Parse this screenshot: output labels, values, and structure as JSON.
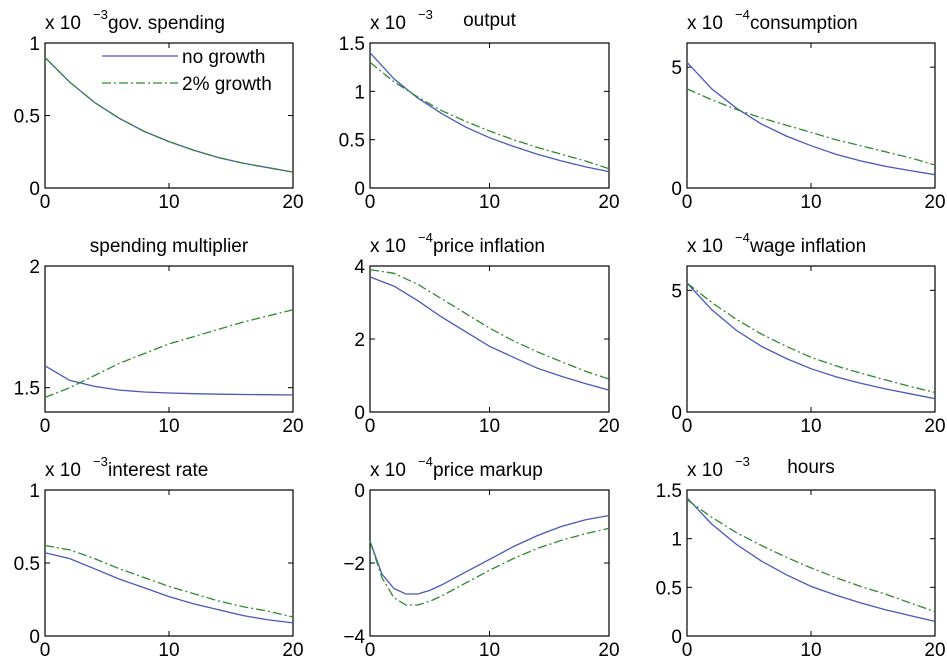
{
  "colors": {
    "no_growth": "#4a58b8",
    "growth_2pct": "#2f8a2f",
    "axis": "#000000"
  },
  "chart_data": [
    {
      "type": "line",
      "title": "gov. spending",
      "multiplier_text": "x 10",
      "exponent": "−3",
      "xlim": [
        0,
        20
      ],
      "ylim": [
        0,
        1
      ],
      "xticks": [
        "0",
        "10",
        "20"
      ],
      "yticks": [
        {
          "v": 0,
          "t": "0"
        },
        {
          "v": 0.5,
          "t": "0.5"
        },
        {
          "v": 1,
          "t": "1"
        }
      ],
      "legend": {
        "placement": "top-right",
        "entries": [
          "no growth",
          "2% growth"
        ]
      },
      "x": [
        0,
        2,
        4,
        6,
        8,
        10,
        12,
        14,
        16,
        18,
        20
      ],
      "series": [
        {
          "name": "no growth",
          "values": [
            0.9,
            0.73,
            0.59,
            0.48,
            0.39,
            0.32,
            0.26,
            0.21,
            0.17,
            0.14,
            0.11
          ]
        },
        {
          "name": "2% growth",
          "values": [
            0.9,
            0.73,
            0.59,
            0.48,
            0.39,
            0.32,
            0.26,
            0.21,
            0.17,
            0.14,
            0.11
          ]
        }
      ]
    },
    {
      "type": "line",
      "title": "output",
      "multiplier_text": "x 10",
      "exponent": "−3",
      "xlim": [
        0,
        20
      ],
      "ylim": [
        0,
        1.5
      ],
      "xticks": [
        "0",
        "10",
        "20"
      ],
      "yticks": [
        {
          "v": 0,
          "t": "0"
        },
        {
          "v": 0.5,
          "t": "0.5"
        },
        {
          "v": 1,
          "t": "1"
        },
        {
          "v": 1.5,
          "t": "1.5"
        }
      ],
      "x": [
        0,
        2,
        4,
        6,
        8,
        10,
        12,
        14,
        16,
        18,
        20
      ],
      "series": [
        {
          "name": "no growth",
          "values": [
            1.4,
            1.13,
            0.93,
            0.77,
            0.63,
            0.52,
            0.43,
            0.35,
            0.28,
            0.22,
            0.17
          ]
        },
        {
          "name": "2% growth",
          "values": [
            1.3,
            1.1,
            0.94,
            0.8,
            0.69,
            0.59,
            0.5,
            0.42,
            0.35,
            0.28,
            0.2
          ]
        }
      ]
    },
    {
      "type": "line",
      "title": "consumption",
      "multiplier_text": "x 10",
      "exponent": "−4",
      "xlim": [
        0,
        20
      ],
      "ylim": [
        0,
        6
      ],
      "xticks": [
        "0",
        "10",
        "20"
      ],
      "yticks": [
        {
          "v": 0,
          "t": "0"
        },
        {
          "v": 5,
          "t": "5"
        }
      ],
      "x": [
        0,
        2,
        4,
        6,
        8,
        10,
        12,
        14,
        16,
        18,
        20
      ],
      "series": [
        {
          "name": "no growth",
          "values": [
            5.2,
            4.1,
            3.3,
            2.65,
            2.15,
            1.75,
            1.4,
            1.12,
            0.9,
            0.72,
            0.55
          ]
        },
        {
          "name": "2% growth",
          "values": [
            4.1,
            3.65,
            3.25,
            2.9,
            2.6,
            2.3,
            2.0,
            1.75,
            1.5,
            1.25,
            0.95
          ]
        }
      ]
    },
    {
      "type": "line",
      "title": "spending multiplier",
      "multiplier_text": "",
      "exponent": "",
      "xlim": [
        0,
        20
      ],
      "ylim": [
        1.4,
        2
      ],
      "xticks": [
        "0",
        "10",
        "20"
      ],
      "yticks": [
        {
          "v": 1.5,
          "t": "1.5"
        },
        {
          "v": 2,
          "t": "2"
        }
      ],
      "x": [
        0,
        2,
        4,
        6,
        8,
        10,
        12,
        14,
        16,
        18,
        20
      ],
      "series": [
        {
          "name": "no growth",
          "values": [
            1.59,
            1.53,
            1.505,
            1.49,
            1.482,
            1.478,
            1.475,
            1.473,
            1.472,
            1.471,
            1.47
          ]
        },
        {
          "name": "2% growth",
          "values": [
            1.46,
            1.5,
            1.55,
            1.6,
            1.64,
            1.68,
            1.71,
            1.74,
            1.77,
            1.795,
            1.82
          ]
        }
      ]
    },
    {
      "type": "line",
      "title": "price inflation",
      "multiplier_text": "x 10",
      "exponent": "−4",
      "xlim": [
        0,
        20
      ],
      "ylim": [
        0,
        4
      ],
      "xticks": [
        "0",
        "10",
        "20"
      ],
      "yticks": [
        {
          "v": 0,
          "t": "0"
        },
        {
          "v": 2,
          "t": "2"
        },
        {
          "v": 4,
          "t": "4"
        }
      ],
      "x": [
        0,
        2,
        4,
        6,
        8,
        10,
        12,
        14,
        16,
        18,
        20
      ],
      "series": [
        {
          "name": "no growth",
          "values": [
            3.7,
            3.45,
            3.05,
            2.6,
            2.2,
            1.8,
            1.5,
            1.2,
            0.98,
            0.78,
            0.6
          ]
        },
        {
          "name": "2% growth",
          "values": [
            3.9,
            3.8,
            3.5,
            3.1,
            2.7,
            2.3,
            1.95,
            1.65,
            1.38,
            1.12,
            0.9
          ]
        }
      ]
    },
    {
      "type": "line",
      "title": "wage inflation",
      "multiplier_text": "x 10",
      "exponent": "−4",
      "xlim": [
        0,
        20
      ],
      "ylim": [
        0,
        6
      ],
      "xticks": [
        "0",
        "10",
        "20"
      ],
      "yticks": [
        {
          "v": 0,
          "t": "0"
        },
        {
          "v": 5,
          "t": "5"
        }
      ],
      "x": [
        0,
        2,
        4,
        6,
        8,
        10,
        12,
        14,
        16,
        18,
        20
      ],
      "series": [
        {
          "name": "no growth",
          "values": [
            5.3,
            4.2,
            3.35,
            2.7,
            2.2,
            1.78,
            1.45,
            1.18,
            0.95,
            0.75,
            0.55
          ]
        },
        {
          "name": "2% growth",
          "values": [
            5.3,
            4.5,
            3.8,
            3.2,
            2.7,
            2.25,
            1.9,
            1.6,
            1.32,
            1.05,
            0.8
          ]
        }
      ]
    },
    {
      "type": "line",
      "title": "interest rate",
      "multiplier_text": "x 10",
      "exponent": "−3",
      "xlim": [
        0,
        20
      ],
      "ylim": [
        0,
        1
      ],
      "xticks": [
        "0",
        "10",
        "20"
      ],
      "yticks": [
        {
          "v": 0,
          "t": "0"
        },
        {
          "v": 0.5,
          "t": "0.5"
        },
        {
          "v": 1,
          "t": "1"
        }
      ],
      "x": [
        0,
        2,
        4,
        6,
        8,
        10,
        12,
        14,
        16,
        18,
        20
      ],
      "series": [
        {
          "name": "no growth",
          "values": [
            0.57,
            0.53,
            0.46,
            0.39,
            0.33,
            0.27,
            0.22,
            0.18,
            0.14,
            0.11,
            0.09
          ]
        },
        {
          "name": "2% growth",
          "values": [
            0.62,
            0.59,
            0.53,
            0.46,
            0.4,
            0.34,
            0.29,
            0.24,
            0.2,
            0.17,
            0.13
          ]
        }
      ]
    },
    {
      "type": "line",
      "title": "price markup",
      "multiplier_text": "x 10",
      "exponent": "−4",
      "xlim": [
        0,
        20
      ],
      "ylim": [
        -4,
        0
      ],
      "xticks": [
        "0",
        "10",
        "20"
      ],
      "yticks": [
        {
          "v": -4,
          "t": "−4"
        },
        {
          "v": -2,
          "t": "−2"
        },
        {
          "v": 0,
          "t": "0"
        }
      ],
      "x": [
        0,
        1,
        2,
        3,
        4,
        5,
        6,
        8,
        10,
        12,
        14,
        16,
        18,
        20
      ],
      "series": [
        {
          "name": "no growth",
          "values": [
            -1.4,
            -2.3,
            -2.7,
            -2.85,
            -2.85,
            -2.75,
            -2.6,
            -2.25,
            -1.9,
            -1.55,
            -1.25,
            -1.0,
            -0.82,
            -0.7
          ]
        },
        {
          "name": "2% growth",
          "values": [
            -1.4,
            -2.4,
            -2.95,
            -3.15,
            -3.15,
            -3.05,
            -2.9,
            -2.55,
            -2.2,
            -1.88,
            -1.6,
            -1.38,
            -1.2,
            -1.05
          ]
        }
      ]
    },
    {
      "type": "line",
      "title": "hours",
      "multiplier_text": "x 10",
      "exponent": "−3",
      "xlim": [
        0,
        20
      ],
      "ylim": [
        0,
        1.5
      ],
      "xticks": [
        "0",
        "10",
        "20"
      ],
      "yticks": [
        {
          "v": 0,
          "t": "0"
        },
        {
          "v": 0.5,
          "t": "0.5"
        },
        {
          "v": 1,
          "t": "1"
        },
        {
          "v": 1.5,
          "t": "1.5"
        }
      ],
      "x": [
        0,
        2,
        4,
        6,
        8,
        10,
        12,
        14,
        16,
        18,
        20
      ],
      "series": [
        {
          "name": "no growth",
          "values": [
            1.42,
            1.15,
            0.94,
            0.77,
            0.63,
            0.51,
            0.42,
            0.34,
            0.27,
            0.21,
            0.15
          ]
        },
        {
          "name": "2% growth",
          "values": [
            1.4,
            1.22,
            1.06,
            0.93,
            0.81,
            0.7,
            0.6,
            0.51,
            0.43,
            0.34,
            0.25
          ]
        }
      ]
    }
  ]
}
